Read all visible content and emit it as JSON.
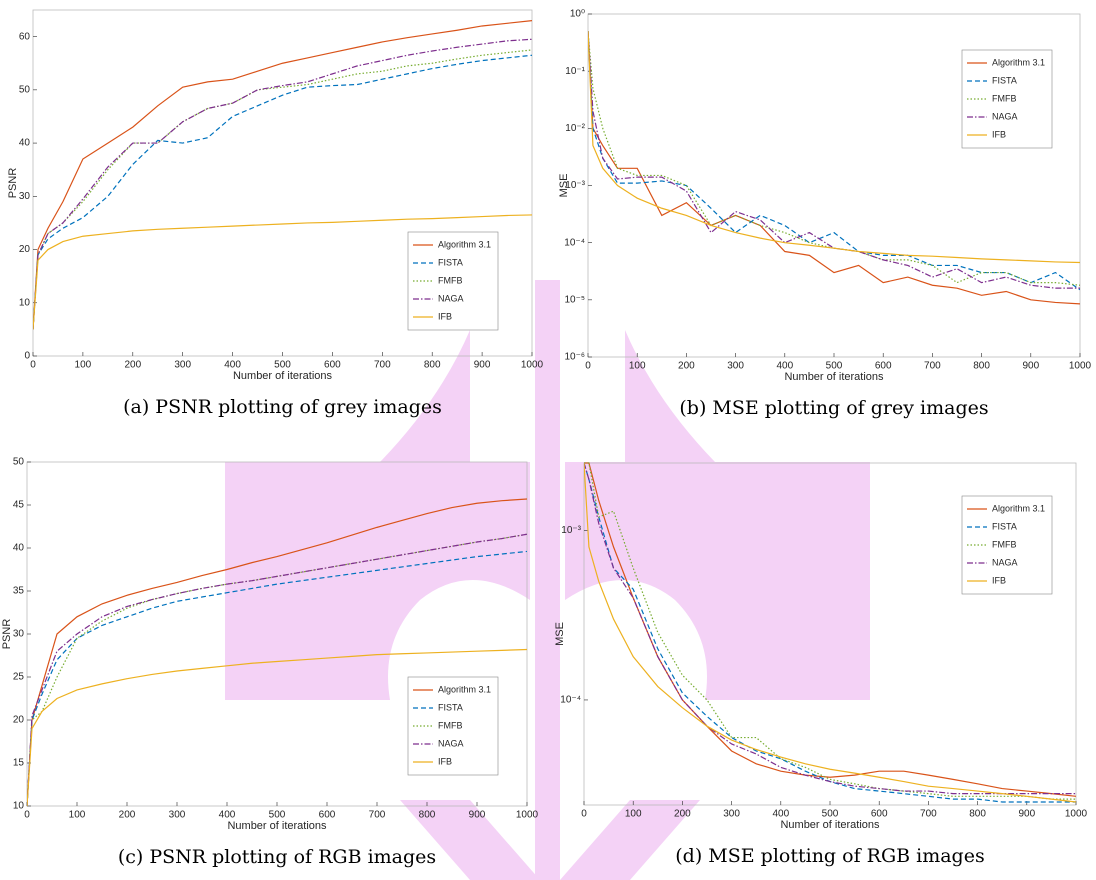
{
  "chart_data": [
    {
      "type": "line",
      "caption": "(a) PSNR plotting of grey images",
      "xlabel": "Number of iterations",
      "ylabel": "PSNR",
      "log_y": false,
      "x": [
        0,
        10,
        30,
        60,
        100,
        150,
        200,
        250,
        300,
        350,
        400,
        450,
        500,
        550,
        600,
        650,
        700,
        750,
        800,
        850,
        900,
        950,
        1000
      ],
      "xlim": [
        0,
        1000
      ],
      "xticks": [
        0,
        100,
        200,
        300,
        400,
        500,
        600,
        700,
        800,
        900,
        1000
      ],
      "ylim": [
        0,
        65
      ],
      "yticks": [
        0,
        10,
        20,
        30,
        40,
        50,
        60
      ],
      "series": [
        {
          "name": "Algorithm 3.1",
          "color": "#d95319",
          "dash": "solid",
          "values": [
            5,
            20,
            24,
            29,
            37,
            40,
            43,
            47,
            50.5,
            51.5,
            52,
            53.5,
            55,
            56,
            57,
            58,
            59,
            59.8,
            60.5,
            61.2,
            62,
            62.5,
            63
          ]
        },
        {
          "name": "FISTA",
          "color": "#0072bd",
          "dash": "dashed",
          "values": [
            5,
            19,
            22,
            24,
            26,
            30,
            36,
            40.5,
            40,
            41,
            45,
            47,
            49,
            50.5,
            50.8,
            51,
            52,
            53,
            54,
            54.8,
            55.5,
            56,
            56.5
          ]
        },
        {
          "name": "FMFB",
          "color": "#77ac30",
          "dash": "dotted",
          "values": [
            5,
            19,
            23,
            25,
            29,
            35,
            40,
            40,
            44,
            46.5,
            47.5,
            50,
            50.5,
            51,
            52,
            53,
            53.5,
            54.5,
            55,
            55.8,
            56.5,
            57,
            57.5
          ]
        },
        {
          "name": "NAGA",
          "color": "#7e2f8e",
          "dash": "dashdot",
          "values": [
            5,
            19,
            23,
            25,
            29.5,
            35.5,
            40,
            40,
            44,
            46.5,
            47.5,
            50,
            50.8,
            51.5,
            53,
            54.5,
            55.5,
            56.5,
            57.3,
            58,
            58.6,
            59.2,
            59.5
          ]
        },
        {
          "name": "IFB",
          "color": "#edb120",
          "dash": "solid",
          "values": [
            5,
            18,
            20,
            21.5,
            22.5,
            23,
            23.5,
            23.8,
            24,
            24.2,
            24.4,
            24.6,
            24.8,
            25,
            25.1,
            25.3,
            25.5,
            25.7,
            25.8,
            26,
            26.2,
            26.4,
            26.5
          ]
        }
      ]
    },
    {
      "type": "line",
      "caption": "(b) MSE plotting of grey images",
      "xlabel": "Number of iterations",
      "ylabel": "MSE",
      "log_y": true,
      "x": [
        0,
        10,
        30,
        60,
        100,
        150,
        200,
        250,
        300,
        350,
        400,
        450,
        500,
        550,
        600,
        650,
        700,
        750,
        800,
        850,
        900,
        950,
        1000
      ],
      "xlim": [
        0,
        1000
      ],
      "xticks": [
        0,
        100,
        200,
        300,
        400,
        500,
        600,
        700,
        800,
        900,
        1000
      ],
      "ylim": [
        1e-06,
        1
      ],
      "yticks": [
        {
          "value": 1e-06,
          "label": "10⁻⁶"
        },
        {
          "value": 1e-05,
          "label": "10⁻⁵"
        },
        {
          "value": 0.0001,
          "label": "10⁻⁴"
        },
        {
          "value": 0.001,
          "label": "10⁻³"
        },
        {
          "value": 0.01,
          "label": "10⁻²"
        },
        {
          "value": 0.1,
          "label": "10⁻¹"
        },
        {
          "value": 1,
          "label": "10⁰"
        }
      ],
      "series": [
        {
          "name": "Algorithm 3.1",
          "color": "#d95319",
          "dash": "solid",
          "values": [
            0.5,
            0.01,
            0.005,
            0.002,
            0.002,
            0.0003,
            0.0005,
            0.0002,
            0.0003,
            0.0002,
            7e-05,
            6e-05,
            3e-05,
            4e-05,
            2e-05,
            2.5e-05,
            1.8e-05,
            1.6e-05,
            1.2e-05,
            1.4e-05,
            1e-05,
            9e-06,
            8.5e-06
          ]
        },
        {
          "name": "FISTA",
          "color": "#0072bd",
          "dash": "dashed",
          "values": [
            0.5,
            0.01,
            0.003,
            0.0011,
            0.0011,
            0.0012,
            0.001,
            0.0004,
            0.00015,
            0.0003,
            0.0002,
            0.0001,
            0.00015,
            7e-05,
            6e-05,
            6e-05,
            4e-05,
            4e-05,
            3e-05,
            3e-05,
            2e-05,
            3e-05,
            1.5e-05
          ]
        },
        {
          "name": "FMFB",
          "color": "#77ac30",
          "dash": "dotted",
          "values": [
            0.5,
            0.05,
            0.01,
            0.002,
            0.0015,
            0.0015,
            0.001,
            0.0002,
            0.0003,
            0.0002,
            0.00015,
            0.0001,
            8e-05,
            7e-05,
            5e-05,
            5e-05,
            4e-05,
            2e-05,
            3e-05,
            3e-05,
            2e-05,
            2e-05,
            1.8e-05
          ]
        },
        {
          "name": "NAGA",
          "color": "#7e2f8e",
          "dash": "dashdot",
          "values": [
            0.5,
            0.02,
            0.003,
            0.0013,
            0.0014,
            0.0014,
            0.0008,
            0.00015,
            0.00035,
            0.00025,
            0.0001,
            0.00015,
            8e-05,
            7e-05,
            5e-05,
            4e-05,
            2.5e-05,
            3.5e-05,
            2e-05,
            2.5e-05,
            1.8e-05,
            1.6e-05,
            1.6e-05
          ]
        },
        {
          "name": "IFB",
          "color": "#edb120",
          "dash": "solid",
          "values": [
            0.5,
            0.005,
            0.002,
            0.001,
            0.0006,
            0.0004,
            0.0003,
            0.0002,
            0.00015,
            0.00012,
            0.0001,
            9e-05,
            8e-05,
            7e-05,
            6.5e-05,
            6e-05,
            5.8e-05,
            5.5e-05,
            5.2e-05,
            5e-05,
            4.8e-05,
            4.6e-05,
            4.5e-05
          ]
        }
      ]
    },
    {
      "type": "line",
      "caption": "(c) PSNR plotting of RGB images",
      "xlabel": "Number of iterations",
      "ylabel": "PSNR",
      "log_y": false,
      "x": [
        0,
        10,
        30,
        60,
        100,
        150,
        200,
        250,
        300,
        350,
        400,
        450,
        500,
        550,
        600,
        650,
        700,
        750,
        800,
        850,
        900,
        950,
        1000
      ],
      "xlim": [
        0,
        1000
      ],
      "xticks": [
        0,
        100,
        200,
        300,
        400,
        500,
        600,
        700,
        800,
        900,
        1000
      ],
      "ylim": [
        10,
        50
      ],
      "yticks": [
        10,
        15,
        20,
        25,
        30,
        35,
        40,
        45,
        50
      ],
      "series": [
        {
          "name": "Algorithm 3.1",
          "color": "#d95319",
          "dash": "solid",
          "values": [
            10,
            20,
            24,
            30,
            32,
            33.5,
            34.5,
            35.3,
            36,
            36.8,
            37.5,
            38.3,
            39,
            39.8,
            40.6,
            41.5,
            42.4,
            43.2,
            44,
            44.7,
            45.2,
            45.5,
            45.7
          ]
        },
        {
          "name": "FISTA",
          "color": "#0072bd",
          "dash": "dashed",
          "values": [
            10,
            20,
            23,
            27,
            29.5,
            31,
            32,
            33,
            33.8,
            34.3,
            34.8,
            35.3,
            35.8,
            36.2,
            36.6,
            37,
            37.4,
            37.8,
            38.2,
            38.6,
            39,
            39.3,
            39.6
          ]
        },
        {
          "name": "FMFB",
          "color": "#77ac30",
          "dash": "dotted",
          "values": [
            10,
            20,
            21,
            25,
            29.5,
            31.5,
            33,
            34,
            34.7,
            35.3,
            35.8,
            36.2,
            36.7,
            37.2,
            37.7,
            38.2,
            38.7,
            39.2,
            39.7,
            40.2,
            40.7,
            41.1,
            41.6
          ]
        },
        {
          "name": "NAGA",
          "color": "#7e2f8e",
          "dash": "dashdot",
          "values": [
            10,
            20.5,
            23.5,
            28,
            30,
            32,
            33.2,
            34,
            34.7,
            35.3,
            35.8,
            36.2,
            36.7,
            37.2,
            37.7,
            38.2,
            38.7,
            39.2,
            39.7,
            40.2,
            40.7,
            41.1,
            41.6
          ]
        },
        {
          "name": "IFB",
          "color": "#edb120",
          "dash": "solid",
          "values": [
            10,
            19,
            21,
            22.5,
            23.5,
            24.2,
            24.8,
            25.3,
            25.7,
            26,
            26.3,
            26.6,
            26.8,
            27,
            27.2,
            27.4,
            27.6,
            27.7,
            27.8,
            27.9,
            28,
            28.1,
            28.2
          ]
        }
      ]
    },
    {
      "type": "line",
      "caption": "(d) MSE plotting of RGB images",
      "xlabel": "Number of iterations",
      "ylabel": "MSE",
      "log_y": true,
      "x": [
        0,
        10,
        30,
        60,
        100,
        150,
        200,
        250,
        300,
        350,
        400,
        450,
        500,
        550,
        600,
        650,
        700,
        750,
        800,
        850,
        900,
        950,
        1000
      ],
      "xlim": [
        0,
        1000
      ],
      "xticks": [
        0,
        100,
        200,
        300,
        400,
        500,
        600,
        700,
        800,
        900,
        1000
      ],
      "ylim": [
        2.4e-05,
        0.0025
      ],
      "yticks": [
        {
          "value": 0.0001,
          "label": "10⁻⁴"
        },
        {
          "value": 0.001,
          "label": "10⁻³"
        }
      ],
      "series": [
        {
          "name": "Algorithm 3.1",
          "color": "#d95319",
          "dash": "solid",
          "values": [
            0.0025,
            0.0025,
            0.0015,
            0.0008,
            0.0004,
            0.00018,
            0.0001,
            7e-05,
            5e-05,
            4.2e-05,
            3.8e-05,
            3.6e-05,
            3.5e-05,
            3.6e-05,
            3.8e-05,
            3.8e-05,
            3.6e-05,
            3.4e-05,
            3.2e-05,
            3e-05,
            2.9e-05,
            2.8e-05,
            2.7e-05
          ]
        },
        {
          "name": "FISTA",
          "color": "#0072bd",
          "dash": "dashed",
          "values": [
            0.0025,
            0.002,
            0.0012,
            0.0006,
            0.00045,
            0.0002,
            0.00011,
            8e-05,
            6e-05,
            5e-05,
            4.5e-05,
            3.8e-05,
            3.3e-05,
            3e-05,
            2.9e-05,
            2.8e-05,
            2.7e-05,
            2.6e-05,
            2.6e-05,
            2.5e-05,
            2.5e-05,
            2.5e-05,
            2.5e-05
          ]
        },
        {
          "name": "FMFB",
          "color": "#77ac30",
          "dash": "dotted",
          "values": [
            0.0025,
            0.0025,
            0.0012,
            0.0013,
            0.0006,
            0.00025,
            0.00014,
            0.0001,
            6e-05,
            6e-05,
            4.5e-05,
            4e-05,
            3.4e-05,
            3.2e-05,
            3e-05,
            2.9e-05,
            2.8e-05,
            2.7e-05,
            2.7e-05,
            2.7e-05,
            2.7e-05,
            2.6e-05,
            2.6e-05
          ]
        },
        {
          "name": "NAGA",
          "color": "#7e2f8e",
          "dash": "dashdot",
          "values": [
            0.0025,
            0.002,
            0.0011,
            0.0006,
            0.0004,
            0.00018,
            0.0001,
            7e-05,
            5.5e-05,
            4.8e-05,
            4e-05,
            3.6e-05,
            3.3e-05,
            3.1e-05,
            3e-05,
            2.9e-05,
            2.9e-05,
            2.8e-05,
            2.8e-05,
            2.8e-05,
            2.8e-05,
            2.8e-05,
            2.8e-05
          ]
        },
        {
          "name": "IFB",
          "color": "#edb120",
          "dash": "solid",
          "values": [
            0.0025,
            0.0008,
            0.0005,
            0.0003,
            0.00018,
            0.00012,
            9e-05,
            7e-05,
            5.8e-05,
            5.1e-05,
            4.6e-05,
            4.2e-05,
            3.9e-05,
            3.7e-05,
            3.5e-05,
            3.3e-05,
            3.1e-05,
            3e-05,
            2.9e-05,
            2.8e-05,
            2.7e-05,
            2.6e-05,
            2.5e-05
          ]
        }
      ]
    }
  ]
}
